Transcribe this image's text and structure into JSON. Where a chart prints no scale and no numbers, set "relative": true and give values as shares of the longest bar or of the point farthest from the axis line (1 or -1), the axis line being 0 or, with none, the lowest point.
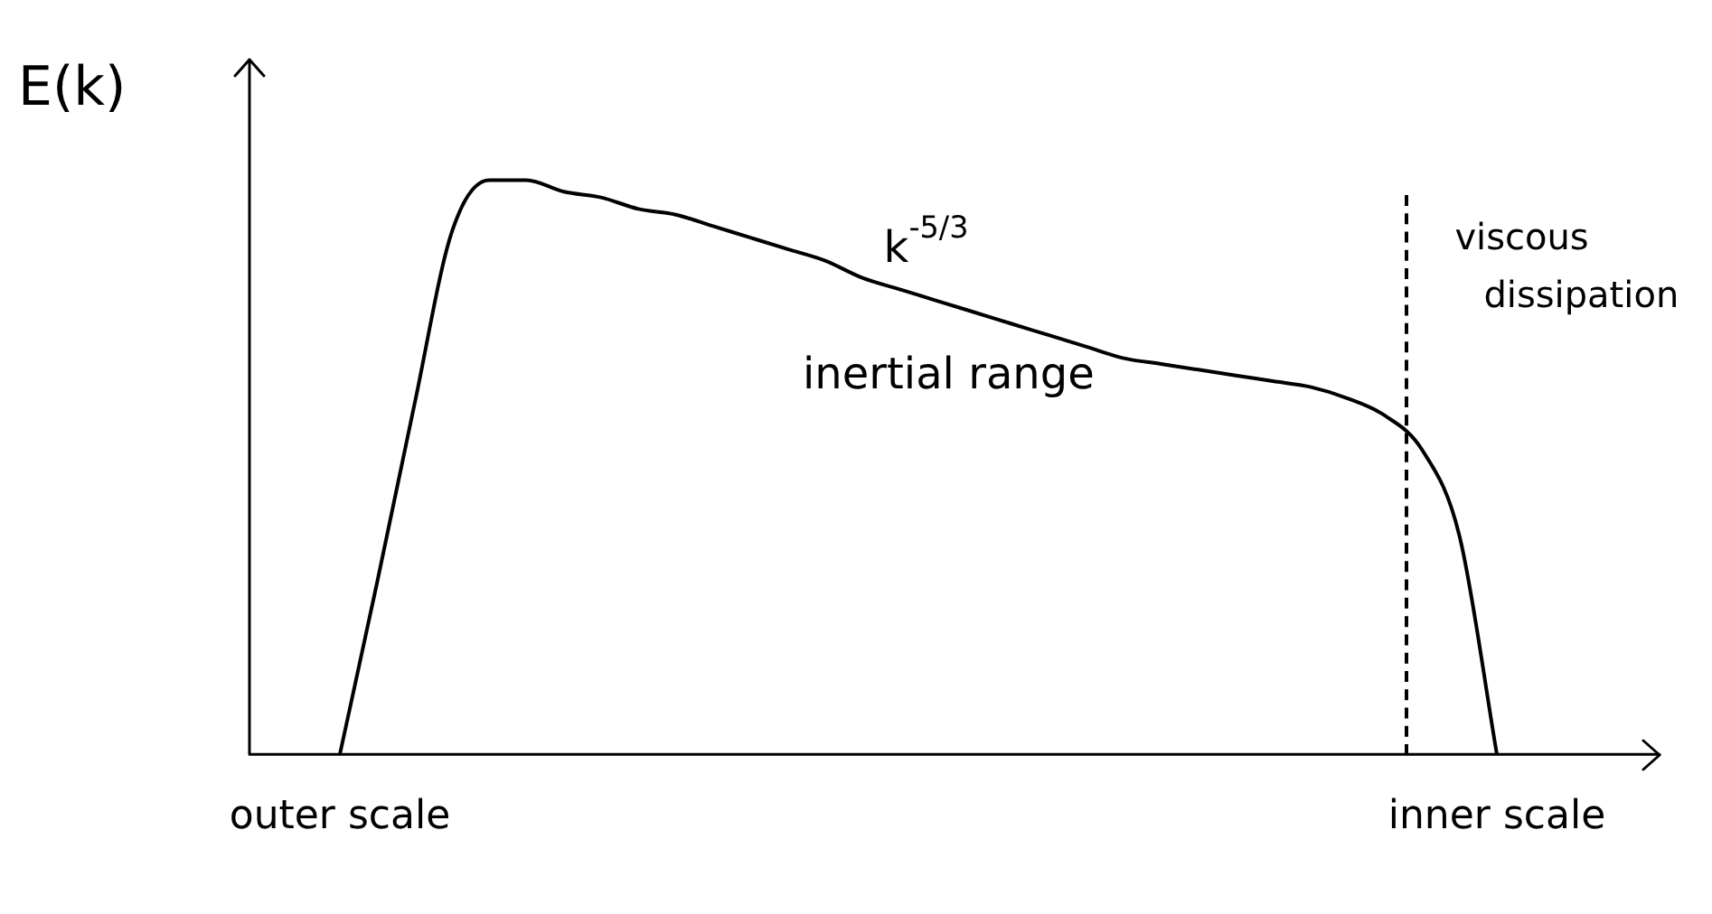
{
  "chart_data": {
    "type": "line",
    "ylabel": "E(k)",
    "relative": true,
    "color": "#000000",
    "marker": "none",
    "grid": false,
    "legend": false,
    "categories": [
      "outer scale",
      null,
      null,
      null,
      null,
      null,
      null,
      null,
      null,
      null,
      null,
      null,
      null,
      null,
      null,
      null,
      null,
      null,
      null,
      null,
      null,
      null,
      null,
      null,
      null,
      null,
      null,
      null,
      null,
      null,
      null,
      "inner scale"
    ],
    "values": [
      0,
      0.3,
      0.61,
      0.91,
      1,
      1,
      0.98,
      0.97,
      0.95,
      0.94,
      0.92,
      0.9,
      0.88,
      0.86,
      0.83,
      0.81,
      0.79,
      0.77,
      0.75,
      0.73,
      0.71,
      0.69,
      0.68,
      0.67,
      0.66,
      0.65,
      0.64,
      0.62,
      0.59,
      0.53,
      0.38,
      0
    ],
    "annotations": [
      "k$^{-5/3}$",
      "inertial range",
      "viscous dissipation"
    ]
  }
}
